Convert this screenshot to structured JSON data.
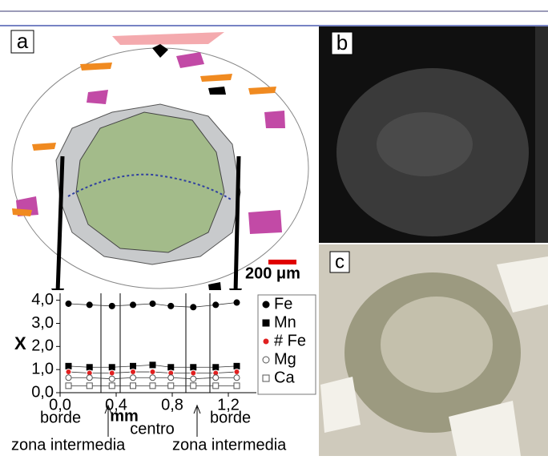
{
  "panel_labels": [
    "a",
    "b",
    "c"
  ],
  "scale_bar": "200 μm",
  "annotations": [
    "borde",
    "centro",
    "borde",
    "zona intermedia",
    "zona intermedia"
  ],
  "chart_data": {
    "type": "line",
    "xlabel": "mm",
    "ylabel": "X",
    "x": [
      0.06,
      0.21,
      0.37,
      0.52,
      0.66,
      0.79,
      0.95,
      1.11,
      1.26
    ],
    "xlim": [
      0,
      1.4
    ],
    "ylim": [
      0,
      4.3
    ],
    "xticks": [
      {
        "value": 0,
        "label": "0,0"
      },
      {
        "value": 0.4,
        "label": "0,4"
      },
      {
        "value": 0.8,
        "label": "0,8"
      },
      {
        "value": 1.2,
        "label": "1,2"
      }
    ],
    "yticks": [
      {
        "value": 0,
        "label": "0,0"
      },
      {
        "value": 1,
        "label": "1,0"
      },
      {
        "value": 2,
        "label": "2,0"
      },
      {
        "value": 3,
        "label": "3,0"
      },
      {
        "value": 4,
        "label": "4,0"
      }
    ],
    "series": [
      {
        "name": "Fe",
        "color": "#000000",
        "marker": "filled-circle",
        "values": [
          3.85,
          3.8,
          3.75,
          3.8,
          3.85,
          3.75,
          3.7,
          3.8,
          3.9
        ]
      },
      {
        "name": "Mn",
        "color": "#000000",
        "marker": "filled-square",
        "values": [
          1.15,
          1.1,
          1.1,
          1.15,
          1.2,
          1.1,
          1.1,
          1.1,
          1.15
        ]
      },
      {
        "name": "# Fe",
        "color": "#e02020",
        "marker": "filled-circle",
        "values": [
          0.9,
          0.85,
          0.85,
          0.9,
          0.9,
          0.85,
          0.85,
          0.85,
          0.9
        ]
      },
      {
        "name": "Mg",
        "color": "#000000",
        "marker": "open-circle",
        "values": [
          0.65,
          0.65,
          0.6,
          0.65,
          0.65,
          0.65,
          0.6,
          0.65,
          0.65
        ]
      },
      {
        "name": "Ca",
        "color": "#000000",
        "marker": "open-square",
        "values": [
          0.3,
          0.3,
          0.3,
          0.3,
          0.3,
          0.3,
          0.3,
          0.3,
          0.3
        ]
      }
    ]
  }
}
